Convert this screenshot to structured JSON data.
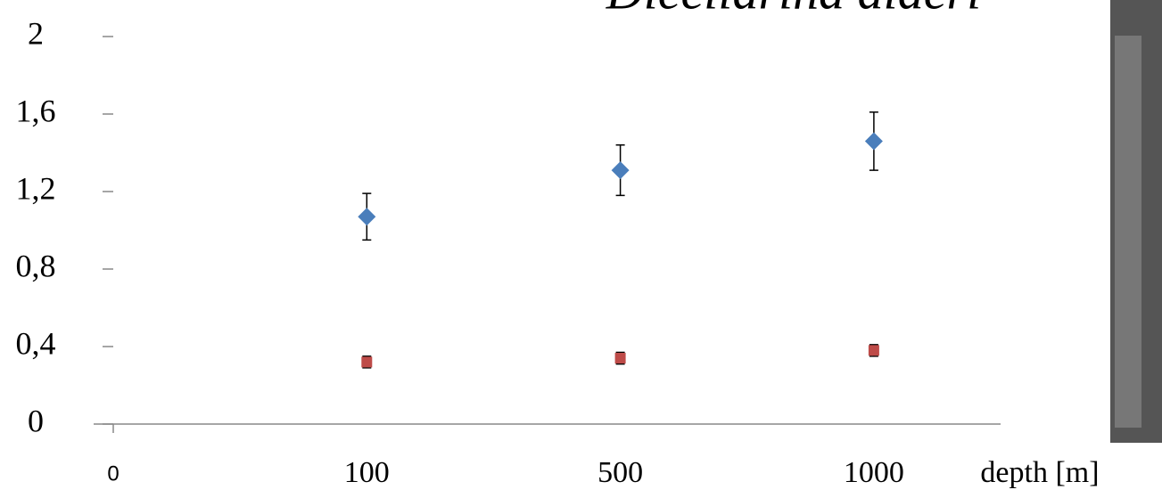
{
  "chart_data": {
    "type": "scatter",
    "title": "Dicellarina alderi",
    "categories": [
      "0",
      "100",
      "500",
      "1000"
    ],
    "x_label": "depth  [m]",
    "series": [
      {
        "color": "#4a7ebb",
        "marker": "diamond",
        "values": [
          null,
          1.07,
          1.31,
          1.46
        ],
        "errors": [
          null,
          0.12,
          0.13,
          0.15
        ]
      },
      {
        "color": "#be4b48",
        "marker": "square",
        "values": [
          null,
          0.32,
          0.34,
          0.38
        ],
        "errors": [
          null,
          0.03,
          0.03,
          0.03
        ]
      }
    ],
    "ylim": [
      0,
      2
    ],
    "yticks": [
      0,
      {
        "value": 0.4,
        "label": "0,4"
      },
      {
        "value": 0.8,
        "label": "0,8"
      },
      {
        "value": 1.2,
        "label": "1,2"
      },
      {
        "value": 1.6,
        "label": "1,6"
      },
      2
    ],
    "grid": false
  }
}
